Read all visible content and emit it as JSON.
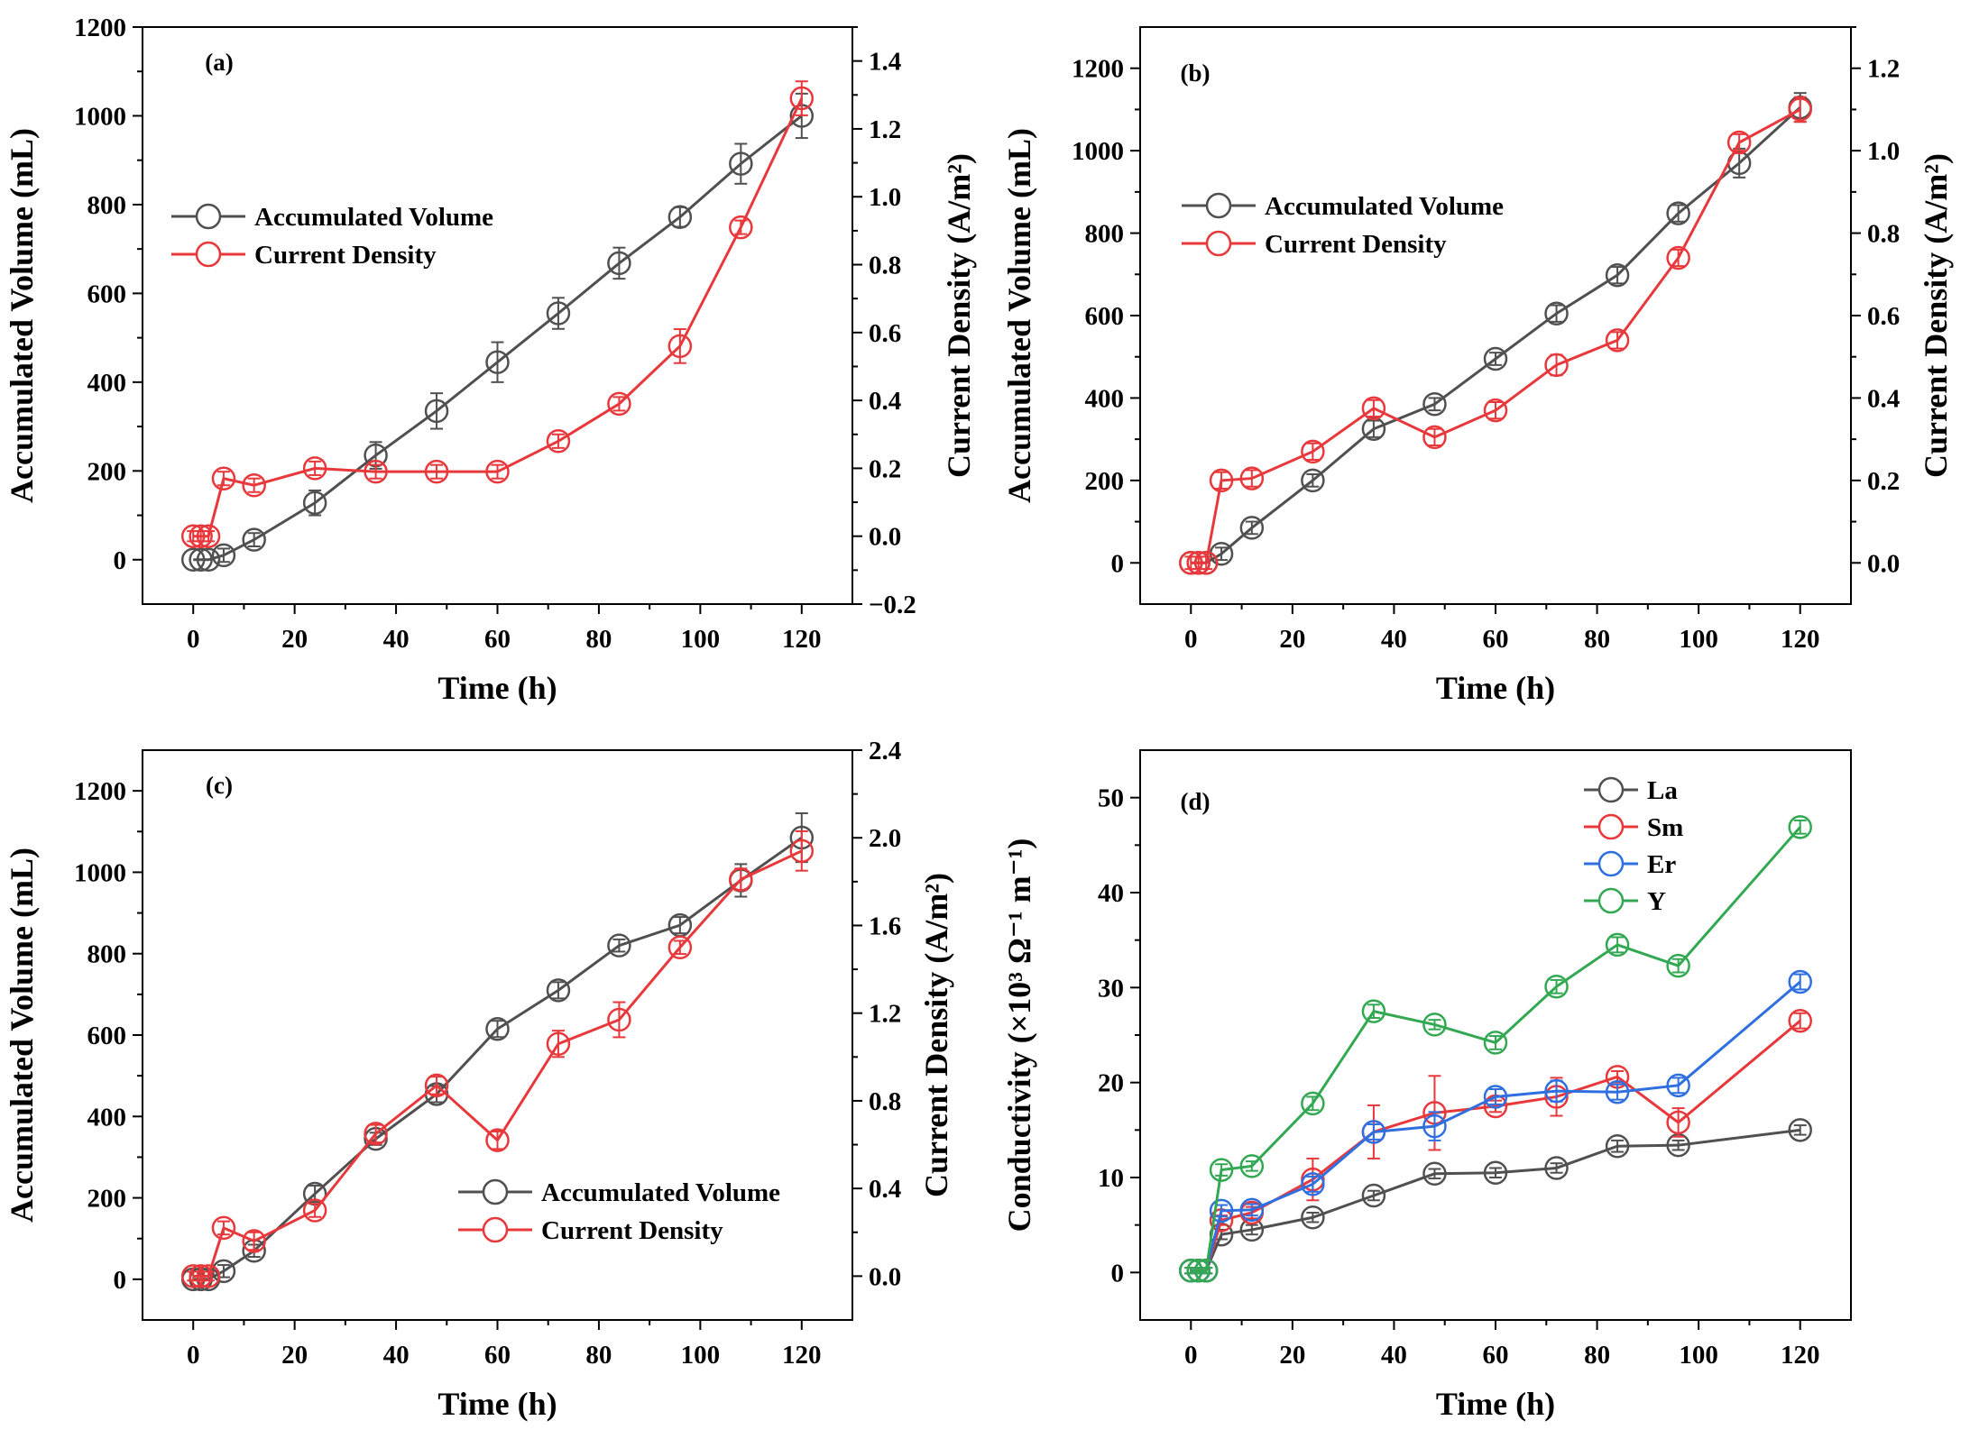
{
  "colors": {
    "gray": "#505050",
    "red": "#e8383b",
    "blue": "#2f6fe0",
    "green": "#33a852",
    "axis": "#000000"
  },
  "chart_data": [
    {
      "id": "a",
      "type": "line",
      "panel_label": "(a)",
      "xlabel": "Time (h)",
      "ylabel": "Accumulated Volume (mL)",
      "y2label": "Current Density (A/m²)",
      "xlim": [
        -10,
        130
      ],
      "ylim": [
        -100,
        1200
      ],
      "y2lim": [
        -0.2,
        1.5
      ],
      "xticks": [
        0,
        20,
        40,
        60,
        80,
        100,
        120
      ],
      "yticks": [
        0,
        200,
        400,
        600,
        800,
        1000,
        1200
      ],
      "y2ticks": [
        -0.2,
        0.0,
        0.2,
        0.4,
        0.6,
        0.8,
        1.0,
        1.2,
        1.4
      ],
      "xtick_labels": [
        "0",
        "20",
        "40",
        "60",
        "80",
        "100",
        "120"
      ],
      "ytick_labels": [
        "0",
        "200",
        "400",
        "600",
        "800",
        "1000",
        "1200"
      ],
      "y2tick_labels": [
        "−0.2",
        "0.0",
        "0.2",
        "0.4",
        "0.6",
        "0.8",
        "1.0",
        "1.2",
        "1.4"
      ],
      "legend": {
        "position": "upper-left"
      },
      "series": [
        {
          "name": "Accumulated Volume",
          "axis": "left",
          "color_key": "gray",
          "x": [
            0,
            1.5,
            3,
            6,
            12,
            24,
            36,
            48,
            60,
            72,
            84,
            96,
            108,
            120
          ],
          "y": [
            0,
            0,
            0,
            10,
            45,
            128,
            235,
            335,
            445,
            555,
            668,
            772,
            892,
            1000
          ],
          "err": [
            0,
            0,
            0,
            15,
            15,
            28,
            30,
            40,
            45,
            35,
            35,
            22,
            45,
            50
          ]
        },
        {
          "name": "Current Density",
          "axis": "right",
          "color_key": "red",
          "x": [
            0,
            1.5,
            3,
            6,
            12,
            24,
            36,
            48,
            60,
            72,
            84,
            96,
            108,
            120
          ],
          "y": [
            0.0,
            0.0,
            0.0,
            0.17,
            0.15,
            0.2,
            0.19,
            0.19,
            0.19,
            0.28,
            0.39,
            0.56,
            0.91,
            1.29
          ],
          "err": [
            0.015,
            0.015,
            0.015,
            0.02,
            0.02,
            0.02,
            0.02,
            0.02,
            0.02,
            0.02,
            0.02,
            0.05,
            0.02,
            0.05
          ]
        }
      ]
    },
    {
      "id": "b",
      "type": "line",
      "panel_label": "(b)",
      "xlabel": "Time (h)",
      "ylabel": "Accumulated Volume (mL)",
      "y2label": "Current Density (A/m²)",
      "xlim": [
        -10,
        130
      ],
      "ylim": [
        -100,
        1300
      ],
      "y2lim": [
        -0.1,
        1.3
      ],
      "xticks": [
        0,
        20,
        40,
        60,
        80,
        100,
        120
      ],
      "yticks": [
        0,
        200,
        400,
        600,
        800,
        1000,
        1200
      ],
      "y2ticks": [
        0.0,
        0.2,
        0.4,
        0.6,
        0.8,
        1.0,
        1.2
      ],
      "xtick_labels": [
        "0",
        "20",
        "40",
        "60",
        "80",
        "100",
        "120"
      ],
      "ytick_labels": [
        "0",
        "200",
        "400",
        "600",
        "800",
        "1000",
        "1200"
      ],
      "y2tick_labels": [
        "0.0",
        "0.2",
        "0.4",
        "0.6",
        "0.8",
        "1.0",
        "1.2"
      ],
      "legend": {
        "position": "upper-left"
      },
      "series": [
        {
          "name": "Accumulated Volume",
          "axis": "left",
          "color_key": "gray",
          "x": [
            0,
            1.5,
            3,
            6,
            12,
            24,
            36,
            48,
            60,
            72,
            84,
            96,
            108,
            120
          ],
          "y": [
            0,
            0,
            0,
            22,
            85,
            200,
            325,
            385,
            495,
            605,
            698,
            848,
            970,
            1105
          ],
          "err": [
            0,
            0,
            0,
            15,
            15,
            15,
            20,
            15,
            15,
            20,
            20,
            20,
            35,
            35
          ]
        },
        {
          "name": "Current Density",
          "axis": "right",
          "color_key": "red",
          "x": [
            0,
            1.5,
            3,
            6,
            12,
            24,
            36,
            48,
            60,
            72,
            84,
            96,
            108,
            120
          ],
          "y": [
            0.0,
            0.0,
            0.0,
            0.2,
            0.205,
            0.27,
            0.375,
            0.305,
            0.37,
            0.48,
            0.54,
            0.74,
            1.02,
            1.1
          ],
          "err": [
            0.015,
            0.015,
            0.015,
            0.02,
            0.02,
            0.02,
            0.02,
            0.02,
            0.02,
            0.025,
            0.02,
            0.02,
            0.02,
            0.03
          ]
        }
      ]
    },
    {
      "id": "c",
      "type": "line",
      "panel_label": "(c)",
      "xlabel": "Time (h)",
      "ylabel": "Accumulated Volume (mL)",
      "y2label": "Current Density (A/m²)",
      "xlim": [
        -10,
        130
      ],
      "ylim": [
        -100,
        1300
      ],
      "y2lim": [
        -0.2,
        2.4
      ],
      "xticks": [
        0,
        20,
        40,
        60,
        80,
        100,
        120
      ],
      "yticks": [
        0,
        200,
        400,
        600,
        800,
        1000,
        1200
      ],
      "y2ticks": [
        0.0,
        0.4,
        0.8,
        1.2,
        1.6,
        2.0,
        2.4
      ],
      "xtick_labels": [
        "0",
        "20",
        "40",
        "60",
        "80",
        "100",
        "120"
      ],
      "ytick_labels": [
        "0",
        "200",
        "400",
        "600",
        "800",
        "1000",
        "1200"
      ],
      "y2tick_labels": [
        "0.0",
        "0.4",
        "0.8",
        "1.2",
        "1.6",
        "2.0",
        "2.4"
      ],
      "legend": {
        "position": "lower-right"
      },
      "series": [
        {
          "name": "Accumulated Volume",
          "axis": "left",
          "color_key": "gray",
          "x": [
            0,
            1.5,
            3,
            6,
            12,
            24,
            36,
            48,
            60,
            72,
            84,
            96,
            108,
            120
          ],
          "y": [
            0,
            0,
            0,
            20,
            70,
            210,
            345,
            455,
            615,
            710,
            820,
            870,
            980,
            1085
          ],
          "err": [
            0,
            0,
            0,
            15,
            15,
            20,
            15,
            20,
            20,
            20,
            15,
            20,
            40,
            60
          ]
        },
        {
          "name": "Current Density",
          "axis": "right",
          "color_key": "red",
          "x": [
            0,
            1.5,
            3,
            6,
            12,
            24,
            36,
            48,
            60,
            72,
            84,
            96,
            108,
            120
          ],
          "y": [
            0.0,
            0.0,
            0.0,
            0.22,
            0.16,
            0.3,
            0.65,
            0.87,
            0.62,
            1.06,
            1.17,
            1.5,
            1.81,
            1.94
          ],
          "err": [
            0.02,
            0.02,
            0.02,
            0.03,
            0.04,
            0.03,
            0.04,
            0.04,
            0.04,
            0.06,
            0.08,
            0.03,
            0.05,
            0.09
          ]
        }
      ]
    },
    {
      "id": "d",
      "type": "line",
      "panel_label": "(d)",
      "xlabel": "Time (h)",
      "ylabel": "Conductivity (×10³ Ω⁻¹ m⁻¹)",
      "xlim": [
        -10,
        130
      ],
      "ylim": [
        -5,
        55
      ],
      "xticks": [
        0,
        20,
        40,
        60,
        80,
        100,
        120
      ],
      "yticks": [
        0,
        10,
        20,
        30,
        40,
        50
      ],
      "xtick_labels": [
        "0",
        "20",
        "40",
        "60",
        "80",
        "100",
        "120"
      ],
      "ytick_labels": [
        "0",
        "10",
        "20",
        "30",
        "40",
        "50"
      ],
      "legend": {
        "position": "upper-center"
      },
      "series": [
        {
          "name": "La",
          "axis": "left",
          "color_key": "gray",
          "x": [
            0,
            1.5,
            3,
            6,
            12,
            24,
            36,
            48,
            60,
            72,
            84,
            96,
            120
          ],
          "y": [
            0.2,
            0.2,
            0.2,
            4.0,
            4.5,
            5.8,
            8.1,
            10.4,
            10.5,
            11.0,
            13.3,
            13.4,
            15.0
          ],
          "err": [
            0.3,
            0.3,
            0.3,
            0.5,
            0.5,
            0.5,
            0.5,
            0.5,
            0.5,
            0.5,
            0.6,
            0.5,
            0.5
          ]
        },
        {
          "name": "Sm",
          "axis": "left",
          "color_key": "red",
          "x": [
            0,
            1.5,
            3,
            6,
            12,
            24,
            36,
            48,
            60,
            72,
            84,
            96,
            120
          ],
          "y": [
            0.2,
            0.2,
            0.2,
            5.5,
            6.3,
            9.8,
            14.8,
            16.8,
            17.5,
            18.5,
            20.6,
            15.8,
            26.5
          ],
          "err": [
            0.3,
            0.3,
            0.3,
            0.5,
            0.6,
            2.2,
            2.8,
            3.9,
            0.6,
            2.0,
            0.6,
            1.5,
            0.8
          ]
        },
        {
          "name": "Er",
          "axis": "left",
          "color_key": "blue",
          "x": [
            0,
            1.5,
            3,
            6,
            12,
            24,
            36,
            48,
            60,
            72,
            84,
            96,
            120
          ],
          "y": [
            0.2,
            0.2,
            0.2,
            6.5,
            6.6,
            9.3,
            14.8,
            15.4,
            18.5,
            19.1,
            19.0,
            19.7,
            30.6
          ],
          "err": [
            0.3,
            0.3,
            0.3,
            0.6,
            0.6,
            0.8,
            0.8,
            1.5,
            0.8,
            1.1,
            0.8,
            0.8,
            0.8
          ]
        },
        {
          "name": "Y",
          "axis": "left",
          "color_key": "green",
          "x": [
            0,
            1.5,
            3,
            6,
            12,
            24,
            36,
            48,
            60,
            72,
            84,
            96,
            120
          ],
          "y": [
            0.2,
            0.2,
            0.2,
            10.8,
            11.2,
            17.8,
            27.5,
            26.1,
            24.2,
            30.1,
            34.5,
            32.3,
            46.9
          ],
          "err": [
            0.3,
            0.3,
            0.3,
            0.6,
            0.5,
            0.7,
            0.7,
            0.5,
            0.7,
            0.7,
            0.8,
            0.7,
            0.7
          ]
        }
      ]
    }
  ]
}
